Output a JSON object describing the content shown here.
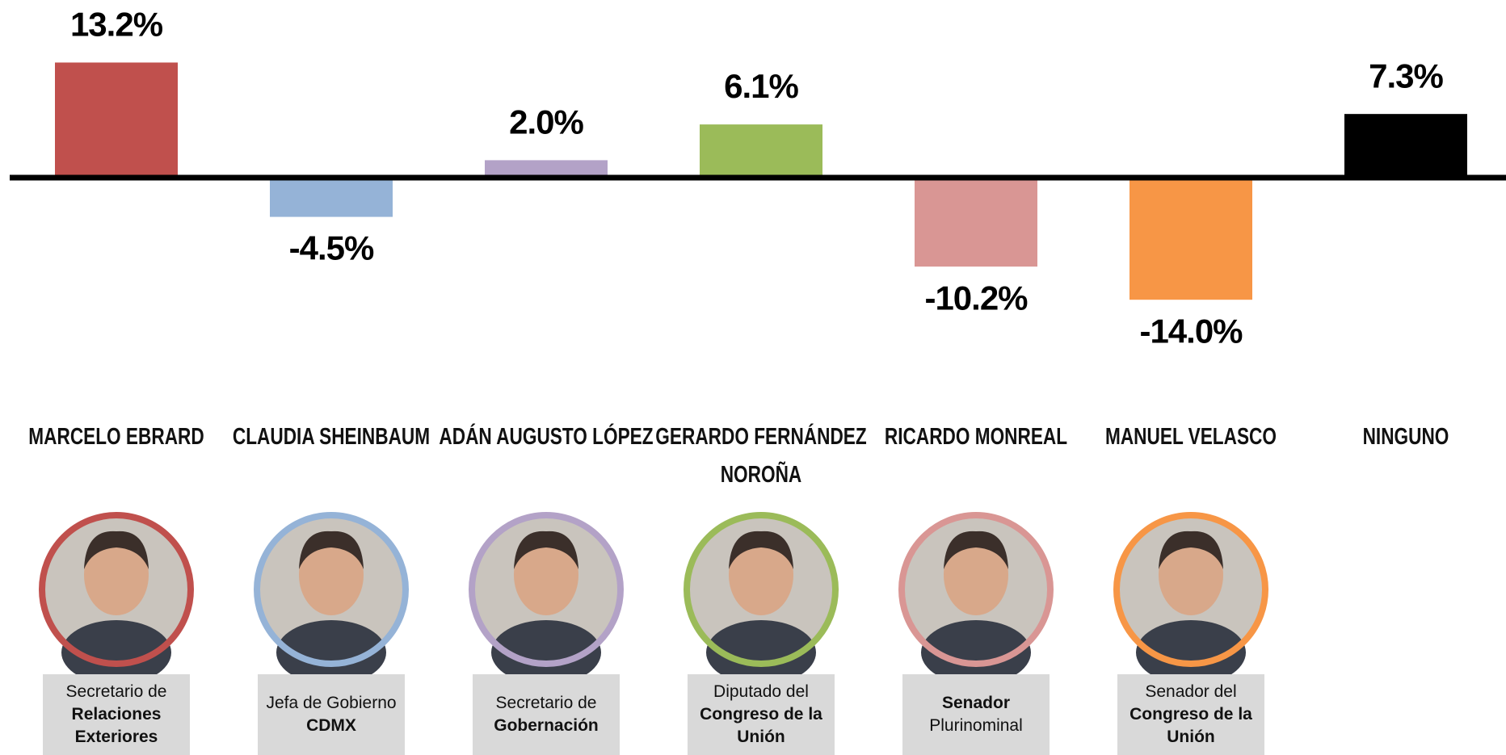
{
  "chart_data": {
    "type": "bar",
    "categories": [
      "MARCELO EBRARD",
      "CLAUDIA SHEINBAUM",
      "ADÁN AUGUSTO LÓPEZ",
      "GERARDO FERNÁNDEZ NOROÑA",
      "RICARDO MONREAL",
      "MANUEL VELASCO",
      "NINGUNO"
    ],
    "values": [
      13.2,
      -4.5,
      2.0,
      6.1,
      -10.2,
      -14.0,
      7.3
    ],
    "value_labels": [
      "13.2%",
      "-4.5%",
      "2.0%",
      "6.1%",
      "-10.2%",
      "-14.0%",
      "7.3%"
    ],
    "colors": [
      "#c0504d",
      "#95b3d7",
      "#b3a2c7",
      "#9bbb59",
      "#d99694",
      "#f79646",
      "#000000"
    ],
    "roles": [
      [
        {
          "text": "Secretario de",
          "bold": false
        },
        {
          "text": "Relaciones Exteriores",
          "bold": true
        }
      ],
      [
        {
          "text": "Jefa de Gobierno",
          "bold": false
        },
        {
          "text": "CDMX",
          "bold": true
        }
      ],
      [
        {
          "text": "Secretario de",
          "bold": false
        },
        {
          "text": "Gobernación",
          "bold": true
        }
      ],
      [
        {
          "text": "Diputado del",
          "bold": false
        },
        {
          "text": "Congreso de la Unión",
          "bold": true
        }
      ],
      [
        {
          "text": "Senador",
          "bold": true
        },
        {
          "text": "Plurinominal",
          "bold": false
        }
      ],
      [
        {
          "text": "Senador del",
          "bold": false
        },
        {
          "text": "Congreso de la Unión",
          "bold": true
        }
      ],
      null
    ]
  }
}
